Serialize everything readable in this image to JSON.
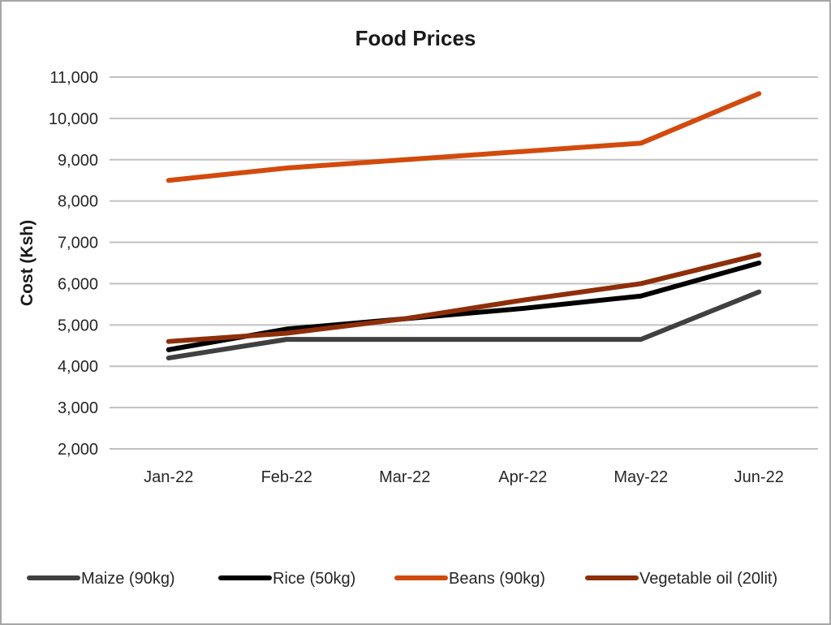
{
  "chart_data": {
    "type": "line",
    "title": "Food Prices",
    "xlabel": "",
    "ylabel": "Cost (Ksh)",
    "categories": [
      "Jan-22",
      "Feb-22",
      "Mar-22",
      "Apr-22",
      "May-22",
      "Jun-22"
    ],
    "ylim": [
      2000,
      11000
    ],
    "yticks": [
      2000,
      3000,
      4000,
      5000,
      6000,
      7000,
      8000,
      9000,
      10000,
      11000
    ],
    "ytick_labels": [
      "2,000",
      "3,000",
      "4,000",
      "5,000",
      "6,000",
      "7,000",
      "8,000",
      "9,000",
      "10,000",
      "11,000"
    ],
    "grid": true,
    "legend_position": "bottom",
    "series": [
      {
        "name": "Maize (90kg)",
        "color": "#404040",
        "values": [
          4200,
          4650,
          4650,
          4650,
          4650,
          5800
        ]
      },
      {
        "name": "Rice (50kg)",
        "color": "#000000",
        "values": [
          4400,
          4900,
          5150,
          5400,
          5700,
          6500
        ]
      },
      {
        "name": "Beans (90kg)",
        "color": "#d24a0d",
        "values": [
          8500,
          8800,
          9000,
          9200,
          9400,
          10600
        ]
      },
      {
        "name": "Vegetable oil (20lit)",
        "color": "#8e2f0a",
        "values": [
          4600,
          4800,
          5150,
          5600,
          6000,
          6700
        ]
      }
    ]
  }
}
